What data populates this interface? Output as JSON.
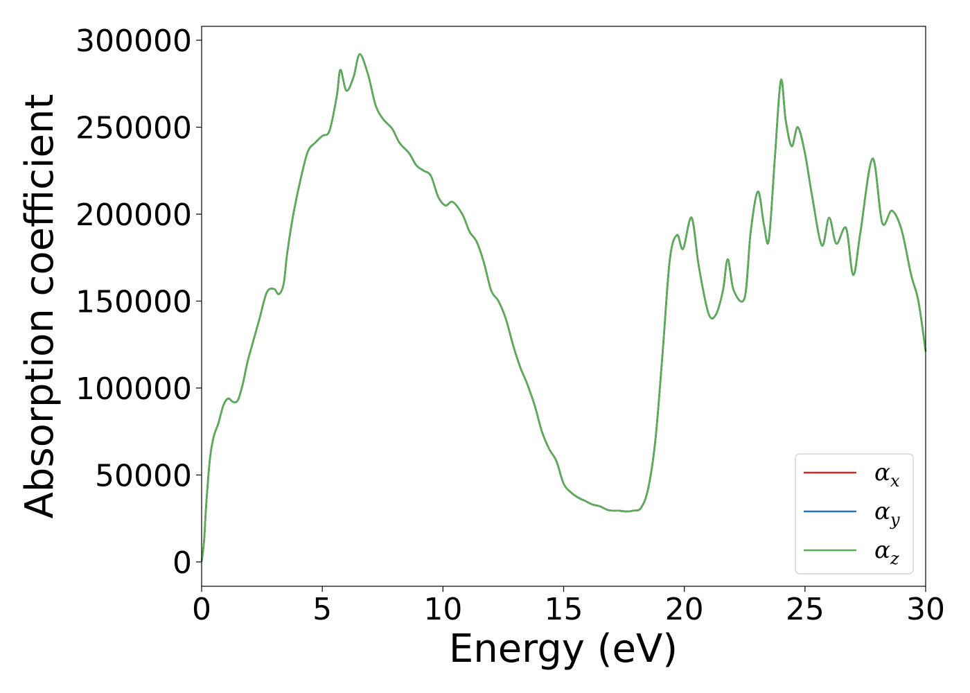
{
  "chart_data": {
    "type": "line",
    "title": "",
    "xlabel": "Energy (eV)",
    "ylabel": "Absorption coefficient",
    "xlim": [
      0,
      30
    ],
    "ylim": [
      -14000,
      308000
    ],
    "xticks": [
      "0",
      "5",
      "10",
      "15",
      "20",
      "25",
      "30"
    ],
    "yticks": [
      "0",
      "50000",
      "100000",
      "150000",
      "200000",
      "250000",
      "300000"
    ],
    "grid": false,
    "legend_position": "lower-right",
    "series": [
      {
        "name": "α_x",
        "symbol": "α",
        "subscript": "x",
        "color": "#d62728"
      },
      {
        "name": "α_y",
        "symbol": "α",
        "subscript": "y",
        "color": "#1f77b4"
      },
      {
        "name": "α_z",
        "symbol": "α",
        "subscript": "z",
        "color": "#5aad55"
      }
    ],
    "x": [
      0,
      0.1,
      0.2,
      0.35,
      0.5,
      0.7,
      0.9,
      1.1,
      1.3,
      1.5,
      1.7,
      1.9,
      2.1,
      2.4,
      2.7,
      3.0,
      3.2,
      3.4,
      3.55,
      3.8,
      4.1,
      4.4,
      4.7,
      5.0,
      5.3,
      5.6,
      5.75,
      6.0,
      6.3,
      6.55,
      6.9,
      7.2,
      7.5,
      7.9,
      8.2,
      8.6,
      8.9,
      9.2,
      9.5,
      9.8,
      10.1,
      10.4,
      10.8,
      11.1,
      11.4,
      11.7,
      12.0,
      12.3,
      12.6,
      12.9,
      13.2,
      13.5,
      13.8,
      14.1,
      14.4,
      14.7,
      15.0,
      15.3,
      15.6,
      15.9,
      16.2,
      16.5,
      16.8,
      17.0,
      17.3,
      17.6,
      17.9,
      18.2,
      18.5,
      18.8,
      19.1,
      19.4,
      19.7,
      19.95,
      20.3,
      20.6,
      21.0,
      21.3,
      21.6,
      21.8,
      22.05,
      22.5,
      22.75,
      23.05,
      23.3,
      23.5,
      23.75,
      24.0,
      24.2,
      24.45,
      24.7,
      25.0,
      25.3,
      25.7,
      26.0,
      26.3,
      26.7,
      27.0,
      27.3,
      27.8,
      28.2,
      28.6,
      29.0,
      29.4,
      29.7,
      30.0
    ],
    "values": [
      0,
      12000,
      35000,
      60000,
      72000,
      80000,
      90000,
      94000,
      92000,
      93000,
      102000,
      115000,
      125000,
      140000,
      155000,
      157000,
      154000,
      160000,
      178000,
      200000,
      220000,
      236000,
      241000,
      245000,
      248000,
      268000,
      283000,
      271000,
      279000,
      292000,
      280000,
      263000,
      255000,
      249000,
      241000,
      235000,
      228000,
      225000,
      222000,
      210000,
      205000,
      207000,
      200000,
      190000,
      184000,
      172000,
      156000,
      150000,
      140000,
      125000,
      112000,
      102000,
      90000,
      75000,
      65000,
      58000,
      45000,
      40000,
      37000,
      35000,
      33000,
      32000,
      30000,
      29500,
      29500,
      29000,
      29500,
      31000,
      42000,
      70000,
      120000,
      174000,
      188000,
      180000,
      198000,
      170000,
      143000,
      142000,
      156000,
      174000,
      156000,
      152000,
      190000,
      213000,
      194000,
      185000,
      232000,
      277000,
      254000,
      239000,
      250000,
      235000,
      210000,
      182000,
      198000,
      183000,
      192000,
      165000,
      190000,
      232000,
      195000,
      202000,
      191000,
      165000,
      150000,
      121000
    ]
  }
}
